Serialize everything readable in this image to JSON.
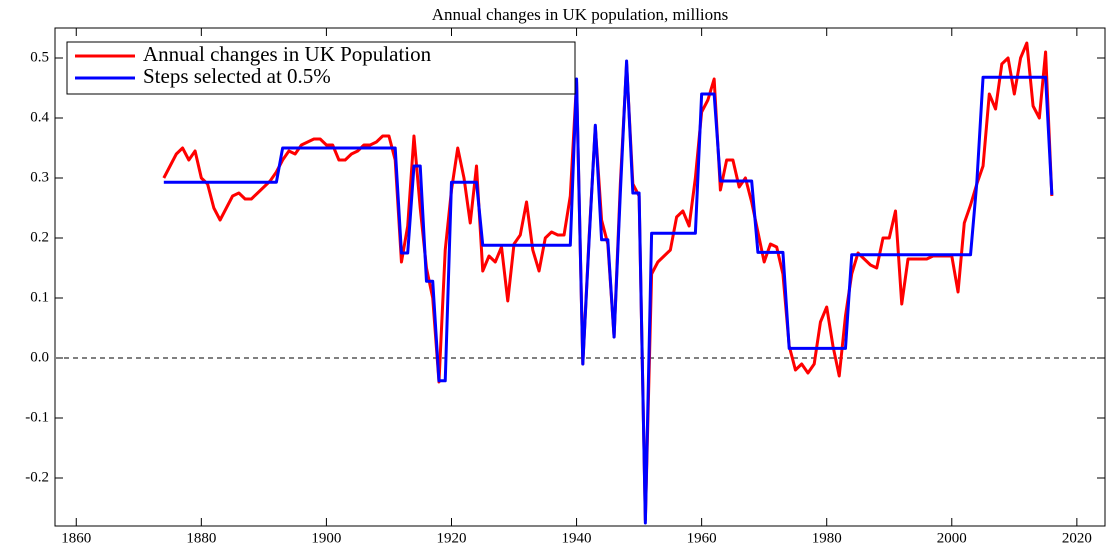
{
  "chart_data": {
    "type": "line",
    "title": "Annual changes in UK population, millions",
    "x": [
      1874,
      1875,
      1876,
      1877,
      1878,
      1879,
      1880,
      1881,
      1882,
      1883,
      1884,
      1885,
      1886,
      1887,
      1888,
      1889,
      1890,
      1891,
      1892,
      1893,
      1894,
      1895,
      1896,
      1897,
      1898,
      1899,
      1900,
      1901,
      1902,
      1903,
      1904,
      1905,
      1906,
      1907,
      1908,
      1909,
      1910,
      1911,
      1912,
      1913,
      1914,
      1915,
      1916,
      1917,
      1918,
      1919,
      1920,
      1921,
      1922,
      1923,
      1924,
      1925,
      1926,
      1927,
      1928,
      1929,
      1930,
      1931,
      1932,
      1933,
      1934,
      1935,
      1936,
      1937,
      1938,
      1939,
      1940,
      1941,
      1942,
      1943,
      1944,
      1945,
      1946,
      1947,
      1948,
      1949,
      1950,
      1951,
      1952,
      1953,
      1954,
      1955,
      1956,
      1957,
      1958,
      1959,
      1960,
      1961,
      1962,
      1963,
      1964,
      1965,
      1966,
      1967,
      1968,
      1969,
      1970,
      1971,
      1972,
      1973,
      1974,
      1975,
      1976,
      1977,
      1978,
      1979,
      1980,
      1981,
      1982,
      1983,
      1984,
      1985,
      1986,
      1987,
      1988,
      1989,
      1990,
      1991,
      1992,
      1993,
      1994,
      1995,
      1996,
      1997,
      1998,
      1999,
      2000,
      2001,
      2002,
      2003,
      2004,
      2005,
      2006,
      2007,
      2008,
      2009,
      2010,
      2011,
      2012,
      2013,
      2014,
      2015,
      2016
    ],
    "series": [
      {
        "name": "Annual changes in UK Population",
        "color": "#ff0000",
        "values": [
          0.3,
          0.32,
          0.34,
          0.35,
          0.33,
          0.345,
          0.3,
          0.29,
          0.25,
          0.23,
          0.25,
          0.27,
          0.275,
          0.265,
          0.265,
          0.275,
          0.285,
          0.295,
          0.31,
          0.33,
          0.345,
          0.34,
          0.355,
          0.36,
          0.365,
          0.365,
          0.355,
          0.355,
          0.33,
          0.33,
          0.34,
          0.345,
          0.355,
          0.355,
          0.36,
          0.37,
          0.37,
          0.33,
          0.16,
          0.22,
          0.37,
          0.25,
          0.15,
          0.1,
          -0.04,
          0.18,
          0.28,
          0.35,
          0.3,
          0.225,
          0.32,
          0.145,
          0.17,
          0.16,
          0.185,
          0.095,
          0.19,
          0.205,
          0.26,
          0.18,
          0.145,
          0.2,
          0.21,
          0.205,
          0.205,
          0.27,
          0.46,
          -0.01,
          0.2,
          0.385,
          0.23,
          0.19,
          0.035,
          0.29,
          0.49,
          0.29,
          0.27,
          -0.27,
          0.14,
          0.16,
          0.17,
          0.18,
          0.235,
          0.245,
          0.22,
          0.3,
          0.41,
          0.43,
          0.465,
          0.28,
          0.33,
          0.33,
          0.285,
          0.3,
          0.26,
          0.21,
          0.16,
          0.19,
          0.185,
          0.14,
          0.02,
          -0.02,
          -0.01,
          -0.025,
          -0.01,
          0.06,
          0.085,
          0.02,
          -0.03,
          0.07,
          0.14,
          0.175,
          0.165,
          0.155,
          0.15,
          0.2,
          0.2,
          0.245,
          0.09,
          0.165,
          0.165,
          0.165,
          0.165,
          0.17,
          0.17,
          0.17,
          0.17,
          0.11,
          0.225,
          0.255,
          0.29,
          0.32,
          0.44,
          0.415,
          0.49,
          0.5,
          0.44,
          0.5,
          0.525,
          0.42,
          0.4,
          0.51,
          0.27
        ]
      },
      {
        "name": "Steps selected at 0.5%",
        "color": "#0000ff",
        "values": [
          0.293,
          0.293,
          0.293,
          0.293,
          0.293,
          0.293,
          0.293,
          0.293,
          0.293,
          0.293,
          0.293,
          0.293,
          0.293,
          0.293,
          0.293,
          0.293,
          0.293,
          0.293,
          0.293,
          0.35,
          0.35,
          0.35,
          0.35,
          0.35,
          0.35,
          0.35,
          0.35,
          0.35,
          0.35,
          0.35,
          0.35,
          0.35,
          0.35,
          0.35,
          0.35,
          0.35,
          0.35,
          0.35,
          0.175,
          0.175,
          0.32,
          0.32,
          0.128,
          0.128,
          -0.038,
          -0.038,
          0.293,
          0.293,
          0.293,
          0.293,
          0.293,
          0.188,
          0.188,
          0.188,
          0.188,
          0.188,
          0.188,
          0.188,
          0.188,
          0.188,
          0.188,
          0.188,
          0.188,
          0.188,
          0.188,
          0.188,
          0.465,
          -0.01,
          0.195,
          0.388,
          0.197,
          0.197,
          0.035,
          0.275,
          0.495,
          0.275,
          0.275,
          -0.275,
          0.208,
          0.208,
          0.208,
          0.208,
          0.208,
          0.208,
          0.208,
          0.208,
          0.44,
          0.44,
          0.44,
          0.295,
          0.295,
          0.295,
          0.295,
          0.295,
          0.295,
          0.176,
          0.176,
          0.176,
          0.176,
          0.176,
          0.016,
          0.016,
          0.016,
          0.016,
          0.016,
          0.016,
          0.016,
          0.016,
          0.016,
          0.016,
          0.172,
          0.172,
          0.172,
          0.172,
          0.172,
          0.172,
          0.172,
          0.172,
          0.172,
          0.172,
          0.172,
          0.172,
          0.172,
          0.172,
          0.172,
          0.172,
          0.172,
          0.172,
          0.172,
          0.172,
          0.292,
          0.468,
          0.468,
          0.468,
          0.468,
          0.468,
          0.468,
          0.468,
          0.468,
          0.468,
          0.468,
          0.468,
          0.272
        ]
      }
    ],
    "xlim": [
      1856.6,
      2024.5
    ],
    "xticks": [
      1860,
      1880,
      1900,
      1920,
      1940,
      1960,
      1980,
      2000,
      2020
    ],
    "ylim": [
      -0.28,
      0.55
    ],
    "yticks": [
      -0.2,
      -0.1,
      {
        "value": 0,
        "label": "0.0"
      },
      0.1,
      0.2,
      0.3,
      0.4,
      0.5
    ],
    "zero_line": true,
    "legend": "upper left"
  }
}
